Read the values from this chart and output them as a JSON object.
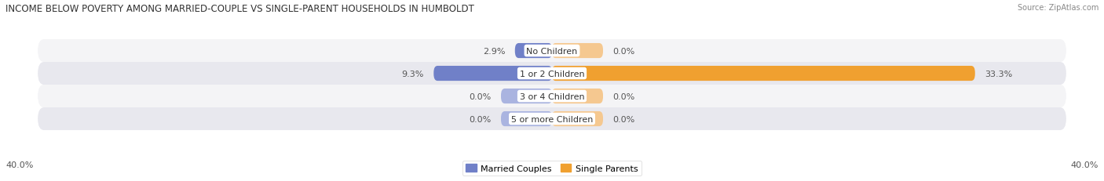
{
  "title": "INCOME BELOW POVERTY AMONG MARRIED-COUPLE VS SINGLE-PARENT HOUSEHOLDS IN HUMBOLDT",
  "source": "Source: ZipAtlas.com",
  "categories": [
    "No Children",
    "1 or 2 Children",
    "3 or 4 Children",
    "5 or more Children"
  ],
  "married_values": [
    2.9,
    9.3,
    0.0,
    0.0
  ],
  "single_values": [
    0.0,
    33.3,
    0.0,
    0.0
  ],
  "axis_max": 40.0,
  "axis_label_left": "40.0%",
  "axis_label_right": "40.0%",
  "married_color_strong": "#7080c8",
  "married_color_light": "#aab4e0",
  "single_color_strong": "#f0a030",
  "single_color_light": "#f5c890",
  "row_bg_color_light": "#f4f4f6",
  "row_bg_color_dark": "#e8e8ee",
  "label_color": "#555555",
  "category_text_color": "#333333",
  "title_color": "#333333",
  "source_color": "#888888",
  "title_fontsize": 8.5,
  "source_fontsize": 7,
  "bar_label_fontsize": 8,
  "category_fontsize": 8,
  "legend_fontsize": 8,
  "axis_fontsize": 8,
  "background_color": "#ffffff",
  "stub_size": 4.0
}
